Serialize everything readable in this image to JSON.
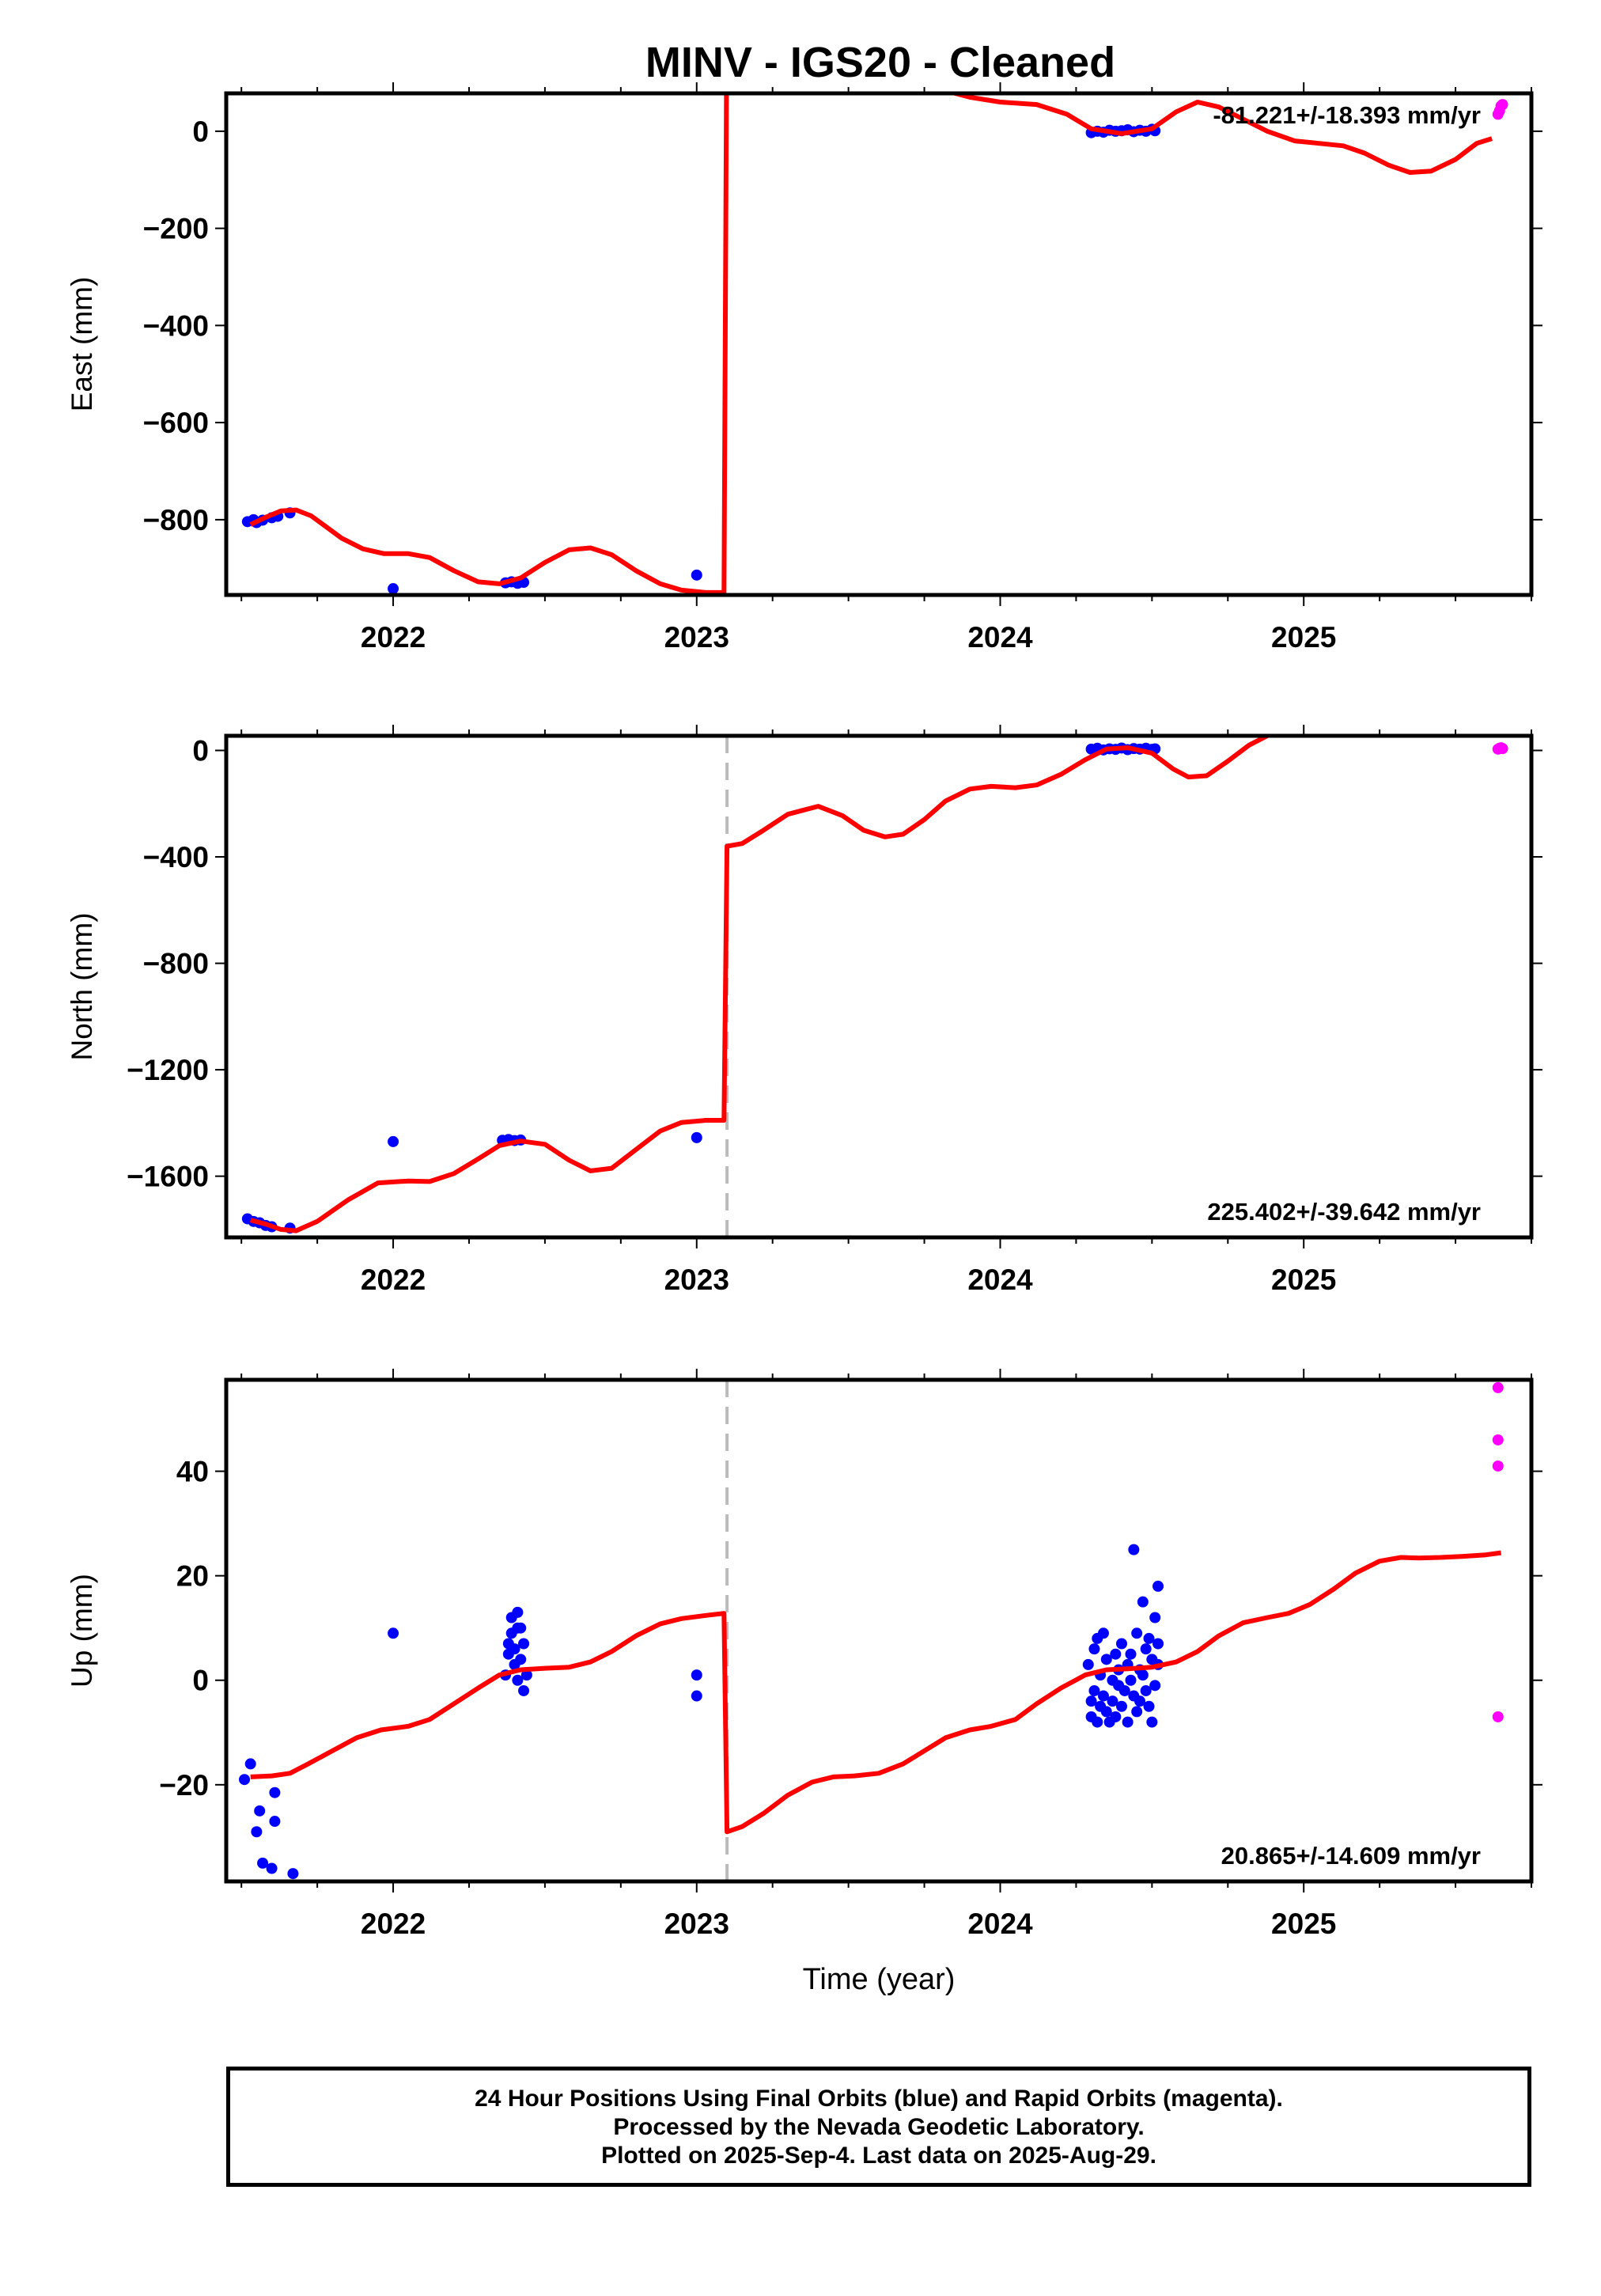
{
  "colors": {
    "final_orbits": "#0000ff",
    "rapid_orbits": "#ff00ff",
    "model": "#ff0000",
    "offset_line": "#bbbbbb"
  },
  "footer": {
    "line1": "24 Hour Positions Using Final Orbits (blue) and Rapid Orbits (magenta).",
    "line2": "Processed by the Nevada Geodetic Laboratory.",
    "line3": "Plotted on 2025-Sep-4. Last data on 2025-Aug-29."
  },
  "chart_data": [
    {
      "type": "scatter",
      "title": "MINV  - IGS20 - Cleaned",
      "ylabel": "East (mm)",
      "xlabel": "",
      "rate_label": "-81.221+/-18.393 mm/yr",
      "rate_position": "top-right",
      "xlim": [
        2021.45,
        2025.75
      ],
      "ylim": [
        -955,
        78
      ],
      "xticks": [
        2022,
        2023,
        2024,
        2025
      ],
      "yticks": [
        0,
        -200,
        -400,
        -600,
        -800
      ],
      "grid": false,
      "offset_year": null,
      "model": {
        "segments": [
          {
            "x": [
              2021.53,
              2021.58,
              2021.63,
              2021.68,
              2021.73,
              2021.78,
              2021.83,
              2021.9,
              2021.97,
              2022.05,
              2022.12,
              2022.2,
              2022.28,
              2022.35,
              2022.42,
              2022.5,
              2022.58,
              2022.65,
              2022.72,
              2022.8,
              2022.88,
              2022.95,
              2023.03,
              2023.09
            ],
            "y": [
              -810,
              -795,
              -782,
              -780,
              -792,
              -815,
              -838,
              -860,
              -870,
              -870,
              -878,
              -905,
              -928,
              -932,
              -920,
              -888,
              -862,
              -858,
              -872,
              -905,
              -932,
              -945,
              -950,
              -950
            ]
          },
          {
            "x": [
              2023.1,
              2023.4,
              2023.6,
              2023.9,
              2024.0,
              2024.12,
              2024.22,
              2024.3,
              2024.4,
              2024.5,
              2024.58,
              2024.65,
              2024.72,
              2024.8,
              2024.88,
              2024.97,
              2025.05,
              2025.13,
              2025.2,
              2025.28,
              2025.35,
              2025.42,
              2025.5,
              2025.57,
              2025.62
            ],
            "y": [
              320,
              180,
              120,
              70,
              60,
              55,
              35,
              5,
              -5,
              5,
              40,
              60,
              50,
              25,
              0,
              -20,
              -25,
              -30,
              -45,
              -70,
              -85,
              -82,
              -58,
              -25,
              -15
            ]
          }
        ]
      },
      "series": [
        {
          "name": "final",
          "color": "#0000ff",
          "points": [
            [
              2021.52,
              -804
            ],
            [
              2021.54,
              -800
            ],
            [
              2021.55,
              -806
            ],
            [
              2021.57,
              -801
            ],
            [
              2021.6,
              -796
            ],
            [
              2021.62,
              -793
            ],
            [
              2021.66,
              -786
            ],
            [
              2022.0,
              -942
            ],
            [
              2022.37,
              -930
            ],
            [
              2022.39,
              -928
            ],
            [
              2022.41,
              -931
            ],
            [
              2022.43,
              -929
            ],
            [
              2023.0,
              -914
            ],
            [
              2024.3,
              -3
            ],
            [
              2024.32,
              0
            ],
            [
              2024.34,
              -2
            ],
            [
              2024.36,
              2
            ],
            [
              2024.38,
              0
            ],
            [
              2024.4,
              1
            ],
            [
              2024.42,
              3
            ],
            [
              2024.44,
              -1
            ],
            [
              2024.46,
              2
            ],
            [
              2024.48,
              0
            ],
            [
              2024.5,
              4
            ],
            [
              2024.51,
              1
            ]
          ]
        },
        {
          "name": "rapid",
          "color": "#ff00ff",
          "points": [
            [
              2025.64,
              35
            ],
            [
              2025.645,
              42
            ],
            [
              2025.65,
              52
            ],
            [
              2025.655,
              55
            ]
          ]
        }
      ]
    },
    {
      "type": "scatter",
      "title": "",
      "ylabel": "North (mm)",
      "xlabel": "",
      "rate_label": "225.402+/-39.642 mm/yr",
      "rate_position": "bottom-right",
      "xlim": [
        2021.45,
        2025.75
      ],
      "ylim": [
        -1830,
        55
      ],
      "xticks": [
        2022,
        2023,
        2024,
        2025
      ],
      "yticks": [
        0,
        -400,
        -800,
        -1200,
        -1600
      ],
      "grid": false,
      "offset_year": 2023.1,
      "model": {
        "segments": [
          {
            "x": [
              2021.53,
              2021.58,
              2021.63,
              2021.68,
              2021.75,
              2021.85,
              2021.95,
              2022.05,
              2022.12,
              2022.2,
              2022.28,
              2022.35,
              2022.42,
              2022.5,
              2022.58,
              2022.65,
              2022.72,
              2022.8,
              2022.88,
              2022.95,
              2023.03,
              2023.09
            ],
            "y": [
              -1765,
              -1780,
              -1800,
              -1805,
              -1770,
              -1690,
              -1625,
              -1618,
              -1620,
              -1590,
              -1535,
              -1485,
              -1468,
              -1480,
              -1540,
              -1580,
              -1570,
              -1500,
              -1430,
              -1398,
              -1390,
              -1390
            ]
          },
          {
            "x": [
              2023.1,
              2023.15,
              2023.22,
              2023.3,
              2023.4,
              2023.48,
              2023.55,
              2023.62,
              2023.68,
              2023.75,
              2023.82,
              2023.9,
              2023.97,
              2024.05,
              2024.12,
              2024.2,
              2024.28,
              2024.35,
              2024.42,
              2024.5,
              2024.57,
              2024.62,
              2024.68,
              2024.75,
              2024.82,
              2024.88
            ],
            "y": [
              -360,
              -350,
              -300,
              -240,
              -210,
              -245,
              -300,
              -325,
              -315,
              -260,
              -190,
              -145,
              -135,
              -140,
              -130,
              -90,
              -35,
              5,
              10,
              -10,
              -70,
              -100,
              -95,
              -40,
              20,
              55
            ]
          }
        ]
      },
      "series": [
        {
          "name": "final",
          "color": "#0000ff",
          "points": [
            [
              2021.52,
              -1760
            ],
            [
              2021.54,
              -1770
            ],
            [
              2021.56,
              -1775
            ],
            [
              2021.58,
              -1785
            ],
            [
              2021.6,
              -1790
            ],
            [
              2021.66,
              -1795
            ],
            [
              2022.0,
              -1470
            ],
            [
              2022.36,
              -1465
            ],
            [
              2022.38,
              -1462
            ],
            [
              2022.4,
              -1466
            ],
            [
              2022.42,
              -1464
            ],
            [
              2023.0,
              -1455
            ],
            [
              2024.3,
              5
            ],
            [
              2024.32,
              8
            ],
            [
              2024.34,
              2
            ],
            [
              2024.36,
              6
            ],
            [
              2024.38,
              4
            ],
            [
              2024.4,
              9
            ],
            [
              2024.42,
              3
            ],
            [
              2024.44,
              7
            ],
            [
              2024.46,
              5
            ],
            [
              2024.48,
              8
            ],
            [
              2024.5,
              4
            ],
            [
              2024.51,
              6
            ]
          ]
        },
        {
          "name": "rapid",
          "color": "#ff00ff",
          "points": [
            [
              2025.64,
              5
            ],
            [
              2025.645,
              8
            ],
            [
              2025.65,
              10
            ],
            [
              2025.655,
              7
            ]
          ]
        }
      ]
    },
    {
      "type": "scatter",
      "title": "",
      "ylabel": "Up (mm)",
      "xlabel": "Time (year)",
      "rate_label": "20.865+/-14.609 mm/yr",
      "rate_position": "bottom-right",
      "xlim": [
        2021.45,
        2025.75
      ],
      "ylim": [
        -38.5,
        57.5
      ],
      "xticks": [
        2022,
        2023,
        2024,
        2025
      ],
      "yticks": [
        40,
        20,
        0,
        -20
      ],
      "grid": false,
      "offset_year": 2023.1,
      "model": {
        "segments": [
          {
            "x": [
              2021.53,
              2021.6,
              2021.66,
              2021.72,
              2021.8,
              2021.88,
              2021.96,
              2022.05,
              2022.12,
              2022.2,
              2022.28,
              2022.35,
              2022.42,
              2022.5,
              2022.58,
              2022.65,
              2022.72,
              2022.8,
              2022.88,
              2022.95,
              2023.03,
              2023.09
            ],
            "y": [
              -18.5,
              -18.3,
              -17.8,
              -16,
              -13.5,
              -11,
              -9.5,
              -8.8,
              -7.5,
              -4.5,
              -1.5,
              1,
              2,
              2.3,
              2.5,
              3.5,
              5.5,
              8.5,
              10.8,
              11.8,
              12.4,
              12.8
            ]
          },
          {
            "x": [
              2023.1,
              2023.15,
              2023.22,
              2023.3,
              2023.38,
              2023.45,
              2023.52,
              2023.6,
              2023.68,
              2023.75,
              2023.82,
              2023.9,
              2023.97,
              2024.05,
              2024.12,
              2024.2,
              2024.28,
              2024.35,
              2024.42,
              2024.5,
              2024.58,
              2024.65,
              2024.72,
              2024.8,
              2024.88,
              2024.95,
              2025.02,
              2025.1,
              2025.17,
              2025.25,
              2025.32,
              2025.38,
              2025.45,
              2025.52,
              2025.6,
              2025.65
            ],
            "y": [
              -29,
              -28,
              -25.5,
              -22,
              -19.5,
              -18.5,
              -18.3,
              -17.8,
              -16,
              -13.5,
              -11,
              -9.5,
              -8.8,
              -7.5,
              -4.5,
              -1.5,
              1,
              2,
              2.2,
              2.5,
              3.5,
              5.5,
              8.5,
              11,
              12,
              12.8,
              14.5,
              17.5,
              20.5,
              22.8,
              23.5,
              23.4,
              23.5,
              23.7,
              24,
              24.4
            ]
          }
        ]
      },
      "series": [
        {
          "name": "final",
          "color": "#0000ff",
          "points": [
            [
              2021.51,
              -19
            ],
            [
              2021.53,
              -16
            ],
            [
              2021.55,
              -29
            ],
            [
              2021.56,
              -25
            ],
            [
              2021.57,
              -35
            ],
            [
              2021.6,
              -36
            ],
            [
              2021.61,
              -27
            ],
            [
              2021.61,
              -21.5
            ],
            [
              2021.67,
              -37
            ],
            [
              2022.0,
              9
            ],
            [
              2022.37,
              1
            ],
            [
              2022.38,
              7
            ],
            [
              2022.38,
              5
            ],
            [
              2022.39,
              12
            ],
            [
              2022.39,
              9
            ],
            [
              2022.4,
              3
            ],
            [
              2022.4,
              6
            ],
            [
              2022.41,
              10
            ],
            [
              2022.41,
              13
            ],
            [
              2022.41,
              0
            ],
            [
              2022.42,
              4
            ],
            [
              2022.42,
              10
            ],
            [
              2022.43,
              7
            ],
            [
              2022.43,
              -2
            ],
            [
              2022.44,
              1
            ],
            [
              2023.0,
              1
            ],
            [
              2023.0,
              -3
            ],
            [
              2024.29,
              3
            ],
            [
              2024.3,
              -4
            ],
            [
              2024.3,
              -7
            ],
            [
              2024.31,
              -2
            ],
            [
              2024.31,
              6
            ],
            [
              2024.32,
              -8
            ],
            [
              2024.32,
              8
            ],
            [
              2024.33,
              -5
            ],
            [
              2024.33,
              1
            ],
            [
              2024.34,
              9
            ],
            [
              2024.34,
              -3
            ],
            [
              2024.35,
              -6
            ],
            [
              2024.35,
              4
            ],
            [
              2024.36,
              -8
            ],
            [
              2024.37,
              0
            ],
            [
              2024.37,
              -4
            ],
            [
              2024.38,
              5
            ],
            [
              2024.38,
              -7
            ],
            [
              2024.39,
              2
            ],
            [
              2024.39,
              -1
            ],
            [
              2024.4,
              7
            ],
            [
              2024.4,
              -5
            ],
            [
              2024.41,
              -2
            ],
            [
              2024.42,
              3
            ],
            [
              2024.42,
              -8
            ],
            [
              2024.43,
              0
            ],
            [
              2024.43,
              5
            ],
            [
              2024.44,
              -3
            ],
            [
              2024.44,
              25
            ],
            [
              2024.45,
              -6
            ],
            [
              2024.45,
              9
            ],
            [
              2024.46,
              2
            ],
            [
              2024.46,
              -4
            ],
            [
              2024.47,
              15
            ],
            [
              2024.47,
              1
            ],
            [
              2024.48,
              -2
            ],
            [
              2024.48,
              6
            ],
            [
              2024.49,
              8
            ],
            [
              2024.49,
              -5
            ],
            [
              2024.5,
              4
            ],
            [
              2024.5,
              -8
            ],
            [
              2024.51,
              12
            ],
            [
              2024.51,
              -1
            ],
            [
              2024.52,
              18
            ],
            [
              2024.52,
              3
            ],
            [
              2024.52,
              7
            ]
          ]
        },
        {
          "name": "rapid",
          "color": "#ff00ff",
          "points": [
            [
              2025.64,
              56
            ],
            [
              2025.64,
              46
            ],
            [
              2025.64,
              41
            ],
            [
              2025.64,
              -7
            ]
          ]
        }
      ]
    }
  ]
}
